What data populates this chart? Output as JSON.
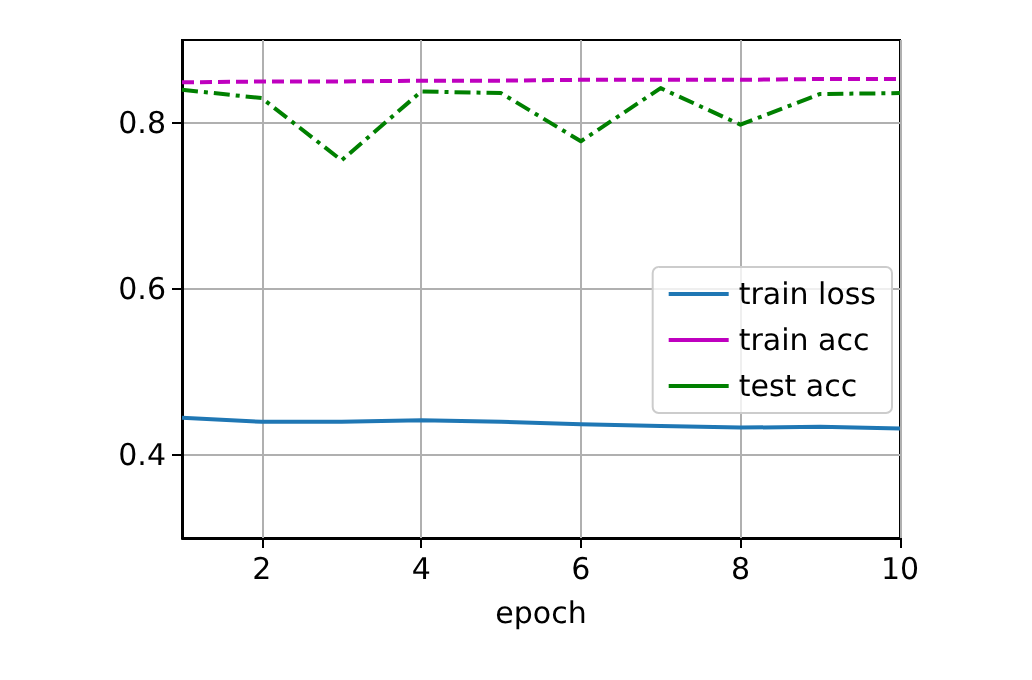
{
  "chart_data": {
    "type": "line",
    "xlabel": "epoch",
    "x": [
      1,
      2,
      3,
      4,
      5,
      6,
      7,
      8,
      9,
      10
    ],
    "series": [
      {
        "name": "train loss",
        "color": "#1f77b4",
        "line_style": "solid",
        "values": [
          0.445,
          0.44,
          0.44,
          0.442,
          0.44,
          0.437,
          0.435,
          0.433,
          0.434,
          0.432
        ]
      },
      {
        "name": "train acc",
        "color": "#bf00bf",
        "line_style": "dashed",
        "values": [
          0.849,
          0.85,
          0.85,
          0.851,
          0.851,
          0.852,
          0.852,
          0.852,
          0.853,
          0.853
        ]
      },
      {
        "name": "test acc",
        "color": "#008000",
        "line_style": "dashdot",
        "values": [
          0.84,
          0.83,
          0.755,
          0.838,
          0.836,
          0.778,
          0.842,
          0.798,
          0.835,
          0.836
        ]
      }
    ],
    "xlim": [
      1,
      10
    ],
    "xticks": [
      2,
      4,
      6,
      8,
      10
    ],
    "ylim": [
      0.3,
      0.9
    ],
    "yticks": [
      0.4,
      0.6,
      0.8
    ],
    "grid": true,
    "legend": "right",
    "marker": "none"
  }
}
